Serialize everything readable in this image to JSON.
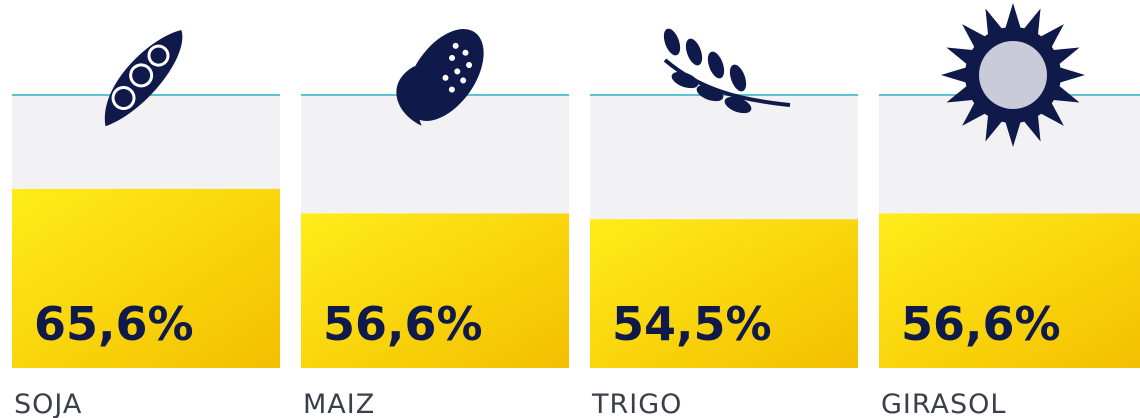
{
  "chart_data": {
    "type": "bar",
    "categories": [
      "SOJA",
      "MAIZ",
      "TRIGO",
      "GIRASOL"
    ],
    "values": [
      65.6,
      56.6,
      54.5,
      56.6
    ],
    "value_labels": [
      "65,6%",
      "56,6%",
      "54,5%",
      "56,6%"
    ],
    "color": "#f7cf00",
    "ylim": [
      0,
      100
    ]
  }
}
